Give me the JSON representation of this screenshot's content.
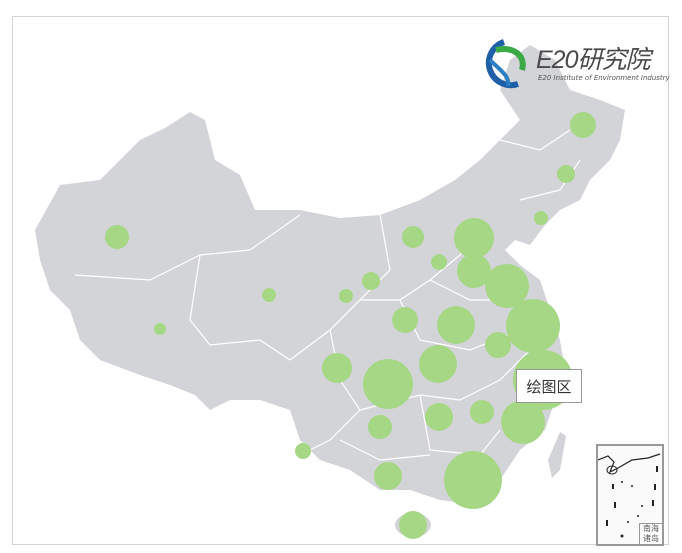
{
  "logo": {
    "name": "E20研究院",
    "subtitle": "E20 Institute of Environment Industry"
  },
  "tooltip": {
    "label": "绘图区"
  },
  "inset": {
    "label": "南海诸岛"
  },
  "colors": {
    "land": "#d3d4d8",
    "border": "#ffffff",
    "bubble": "#a6d785"
  }
}
